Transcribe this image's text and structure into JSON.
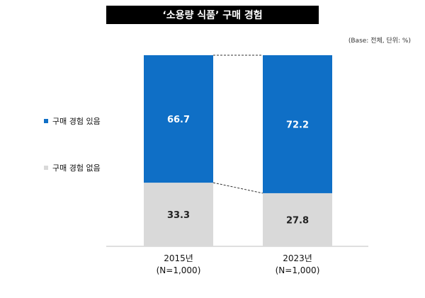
{
  "title": "‘소용량 식품’ 구매 경험",
  "base_note": "(Base: 전체, 단위: %)",
  "colors": {
    "purchased": "#0f6fc6",
    "not_purchased": "#d9d9d9",
    "label_on_blue": "#ffffff",
    "label_on_gray": "#222222"
  },
  "chart_data": {
    "type": "bar",
    "stacked": true,
    "categories": [
      {
        "year": "2015년",
        "n": "(N=1,000)"
      },
      {
        "year": "2023년",
        "n": "(N=1,000)"
      }
    ],
    "series": [
      {
        "name": "구매 경험 없음",
        "values": [
          33.3,
          27.8
        ],
        "labels": [
          "33.3",
          "27.8"
        ]
      },
      {
        "name": "구매 경험 있음",
        "values": [
          66.7,
          72.2
        ],
        "labels": [
          "66.7",
          "72.2"
        ]
      }
    ],
    "ylim": [
      0,
      100
    ],
    "legend_position": "left"
  }
}
